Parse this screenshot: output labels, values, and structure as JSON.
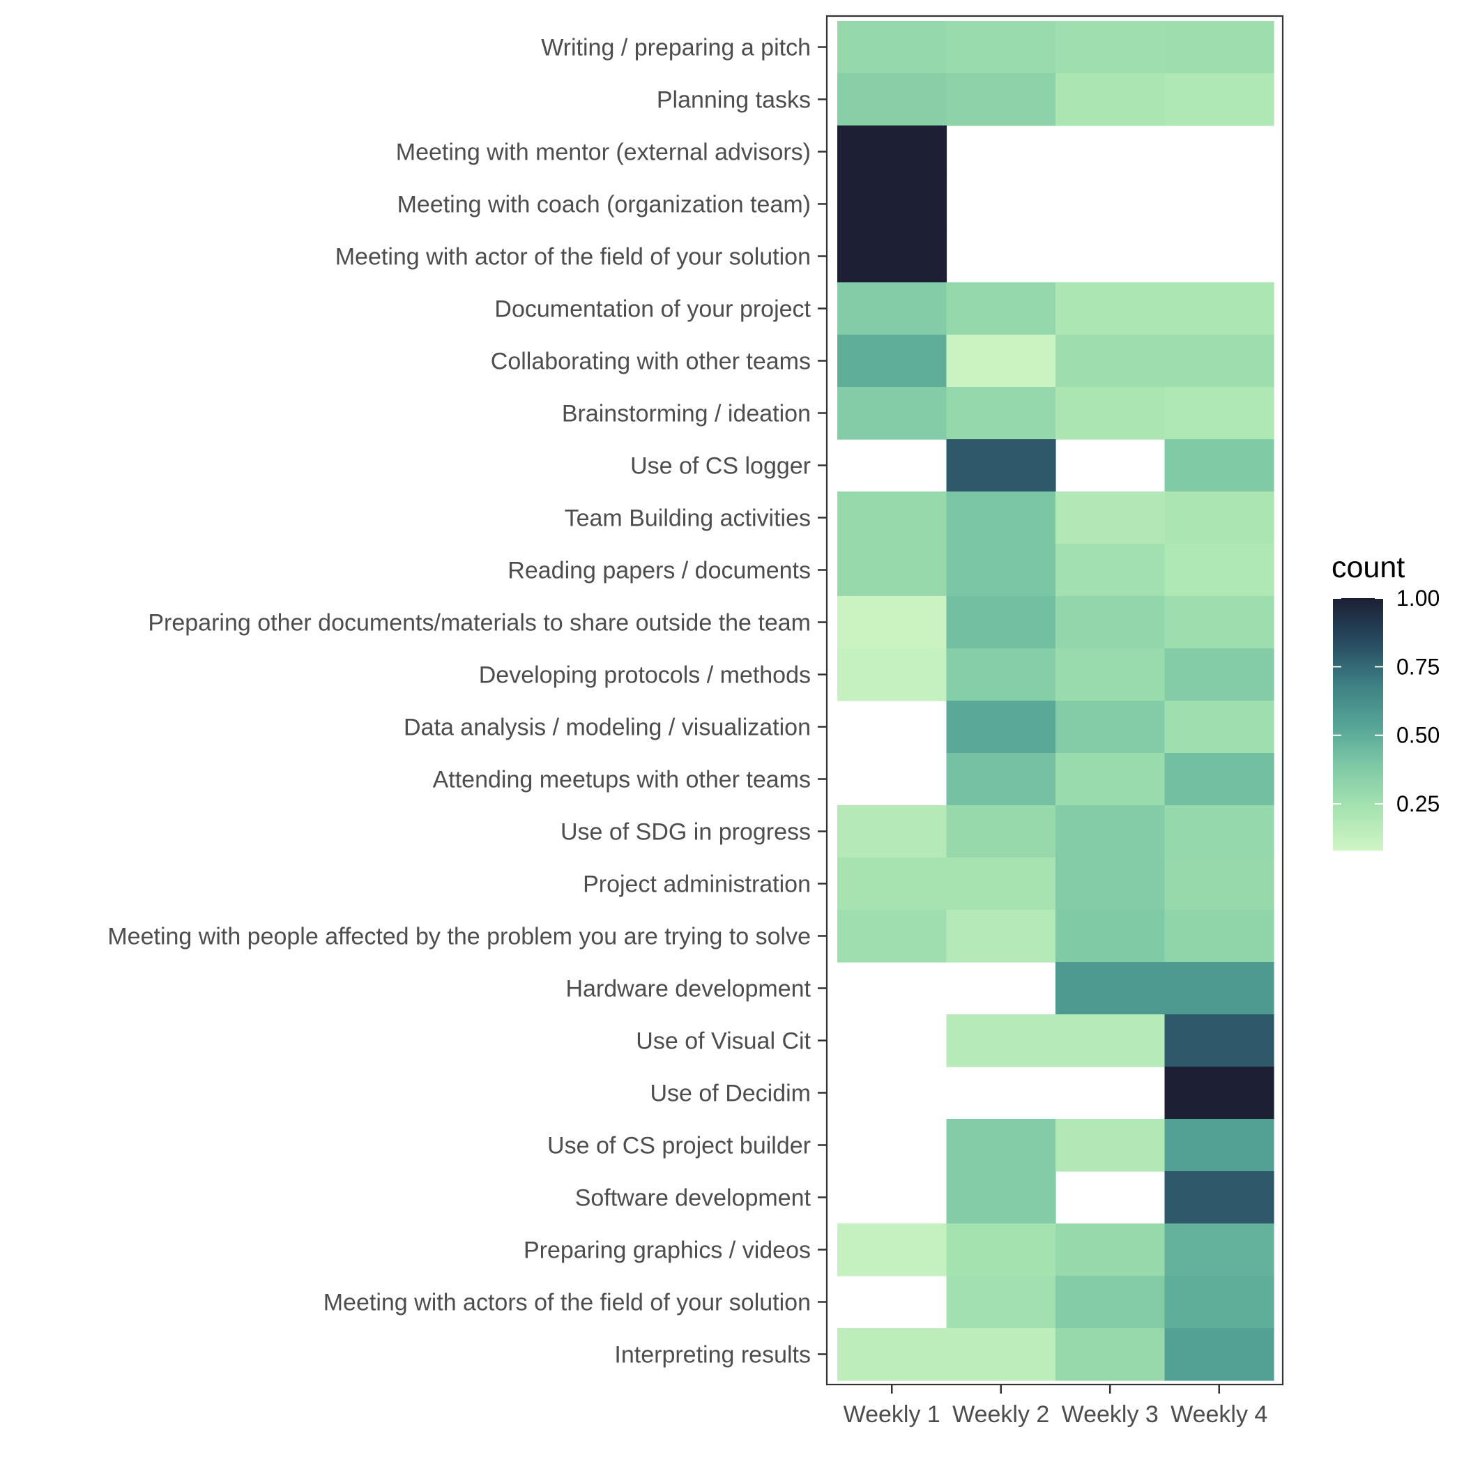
{
  "chart_data": {
    "type": "heatmap",
    "x": [
      "Weekly 1",
      "Weekly 2",
      "Weekly 3",
      "Weekly 4"
    ],
    "y": [
      "Writing  / preparing a pitch",
      "Planning tasks",
      "Meeting with mentor (external advisors)",
      "Meeting with coach (organization team)",
      "Meeting with actor of the field of your solution",
      "Documentation of your project",
      "Collaborating with other teams",
      "Brainstorming / ideation",
      "Use of CS logger",
      "Team Building activities",
      "Reading papers / documents",
      "Preparing other documents/materials to share outside the team",
      "Developing protocols / methods",
      "Data analysis / modeling / visualization",
      "Attending meetups with other teams",
      "Use of SDG in progress",
      "Project administration",
      "Meeting with people affected by the problem you are trying to solve",
      "Hardware development",
      "Use of Visual Cit",
      "Use of Decidim",
      "Use of CS project builder",
      "Software development",
      "Preparing graphics / videos",
      "Meeting with actors of the field of your solution",
      "Interpreting results"
    ],
    "values": [
      [
        0.3,
        0.28,
        0.26,
        0.27
      ],
      [
        0.35,
        0.33,
        0.22,
        0.2
      ],
      [
        1.0,
        null,
        null,
        null
      ],
      [
        1.0,
        null,
        null,
        null
      ],
      [
        1.0,
        null,
        null,
        null
      ],
      [
        0.37,
        0.3,
        0.21,
        0.21
      ],
      [
        0.5,
        0.1,
        0.27,
        0.27
      ],
      [
        0.37,
        0.3,
        0.22,
        0.2
      ],
      [
        null,
        0.8,
        null,
        0.38
      ],
      [
        0.29,
        0.4,
        0.19,
        0.22
      ],
      [
        0.29,
        0.4,
        0.25,
        0.2
      ],
      [
        0.1,
        0.43,
        0.31,
        0.27
      ],
      [
        0.12,
        0.36,
        0.28,
        0.37
      ],
      [
        null,
        0.52,
        0.37,
        0.26
      ],
      [
        null,
        0.42,
        0.28,
        0.43
      ],
      [
        0.18,
        0.29,
        0.37,
        0.3
      ],
      [
        0.23,
        0.23,
        0.37,
        0.29
      ],
      [
        0.26,
        0.18,
        0.38,
        0.32
      ],
      [
        null,
        null,
        0.58,
        0.58
      ],
      [
        null,
        0.17,
        0.17,
        0.8
      ],
      [
        null,
        null,
        null,
        1.0
      ],
      [
        null,
        0.37,
        0.19,
        0.55
      ],
      [
        null,
        0.37,
        null,
        0.8
      ],
      [
        0.12,
        0.24,
        0.29,
        0.48
      ],
      [
        null,
        0.25,
        0.37,
        0.5
      ],
      [
        0.15,
        0.15,
        0.29,
        0.55
      ]
    ],
    "legend": {
      "title": "count",
      "ticks": [
        1.0,
        0.75,
        0.5,
        0.25
      ],
      "tick_labels": [
        "1.00",
        "0.75",
        "0.50",
        "0.25"
      ],
      "range": [
        0.08,
        1.0
      ],
      "placement": "right"
    },
    "color_scale": [
      "#d0f5c5",
      "#a6e3b0",
      "#7fc9a6",
      "#54a496",
      "#3d7d82",
      "#26495f",
      "#1d1f34"
    ],
    "missing_color": "#ffffff",
    "grid": false
  }
}
